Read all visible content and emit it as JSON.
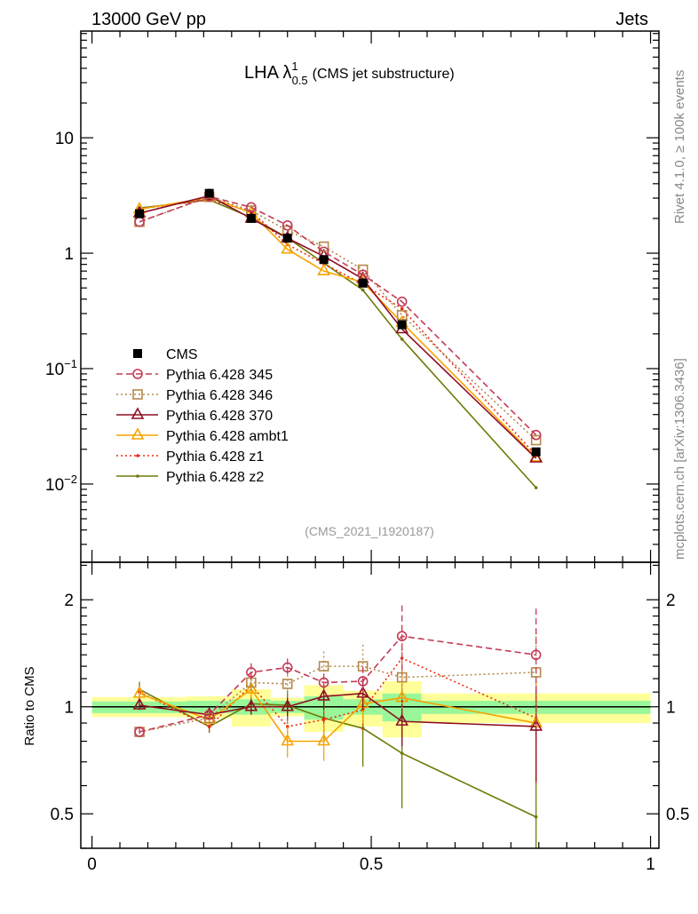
{
  "header": {
    "left": "13000 GeV pp",
    "right": "Jets"
  },
  "side_labels": {
    "rivet": "Rivet 4.1.0, ≥ 100k events",
    "mcplots": "mcplots.cern.ch [arXiv:1306.3436]"
  },
  "chart_data": [
    {
      "type": "line",
      "title": "LHA λ",
      "title_sup": "1",
      "title_sub": "0.5",
      "title_suffix": "(CMS jet substructure)",
      "analysis_label": "(CMS_2021_I1920187)",
      "yscale": "log",
      "ylim": [
        0.0021,
        84
      ],
      "xlim": [
        -0.02,
        1.015
      ],
      "yticks": [
        {
          "v": 10,
          "label": "10"
        },
        {
          "v": 1,
          "label": "1"
        },
        {
          "v": 0.1,
          "label": "10",
          "exp": "−1"
        },
        {
          "v": 0.01,
          "label": "10",
          "exp": "−2"
        }
      ],
      "legend_position": "middle-left",
      "x": [
        0.085,
        0.21,
        0.285,
        0.35,
        0.415,
        0.485,
        0.555,
        0.795
      ],
      "series": [
        {
          "name": "CMS",
          "color": "#000000",
          "marker": "filled-square",
          "line": "none",
          "values": [
            2.2,
            3.3,
            2.0,
            1.35,
            0.88,
            0.55,
            0.24,
            0.019
          ]
        },
        {
          "name": "Pythia 6.428 345",
          "color": "#c33a55",
          "marker": "open-circle",
          "line": "dashed",
          "values": [
            1.87,
            3.1,
            2.5,
            1.74,
            1.03,
            0.65,
            0.38,
            0.0266
          ]
        },
        {
          "name": "Pythia 6.428 346",
          "color": "#b5884a",
          "marker": "open-square",
          "line": "dotted",
          "values": [
            1.87,
            3.07,
            2.34,
            1.57,
            1.14,
            0.72,
            0.29,
            0.024
          ]
        },
        {
          "name": "Pythia 6.428 370",
          "color": "#8e0e22",
          "marker": "open-triangle",
          "line": "solid",
          "values": [
            2.22,
            3.14,
            2.0,
            1.35,
            0.94,
            0.6,
            0.22,
            0.0167
          ]
        },
        {
          "name": "Pythia 6.428 ambt1",
          "color": "#f5a300",
          "marker": "open-triangle",
          "line": "solid",
          "values": [
            2.4,
            3.04,
            2.24,
            1.08,
            0.7,
            0.56,
            0.25,
            0.017
          ]
        },
        {
          "name": "Pythia 6.428 z1",
          "color": "#ee2a10",
          "marker": "dot",
          "line": "dotted",
          "values": [
            2.42,
            2.9,
            2.3,
            1.19,
            0.81,
            0.54,
            0.33,
            0.0177
          ]
        },
        {
          "name": "Pythia 6.428 z2",
          "color": "#6f7a08",
          "marker": "dot",
          "line": "solid",
          "values": [
            2.46,
            2.9,
            2.04,
            1.36,
            0.82,
            0.48,
            0.18,
            0.0093
          ]
        }
      ]
    },
    {
      "type": "line",
      "ylabel": "Ratio to CMS",
      "yscale": "log",
      "ylim": [
        0.4,
        2.55
      ],
      "xlim": [
        -0.02,
        1.015
      ],
      "yticks": [
        {
          "v": 2,
          "label": "2"
        },
        {
          "v": 1,
          "label": "1"
        },
        {
          "v": 0.5,
          "label": "0.5"
        }
      ],
      "xticks": [
        {
          "v": 0,
          "label": "0"
        },
        {
          "v": 0.5,
          "label": "0.5"
        },
        {
          "v": 1,
          "label": "1"
        }
      ],
      "bins": [
        0,
        0.17,
        0.25,
        0.32,
        0.38,
        0.45,
        0.52,
        0.59,
        1.0
      ],
      "band_yellow": [
        [
          0.935,
          1.065
        ],
        [
          0.93,
          1.07
        ],
        [
          0.88,
          1.12
        ],
        [
          0.94,
          1.06
        ],
        [
          0.85,
          1.15
        ],
        [
          0.88,
          1.11
        ],
        [
          0.82,
          1.18
        ],
        [
          0.9,
          1.09
        ]
      ],
      "band_green": [
        [
          0.96,
          1.035
        ],
        [
          0.96,
          1.04
        ],
        [
          0.95,
          1.05
        ],
        [
          0.96,
          1.04
        ],
        [
          0.92,
          1.07
        ],
        [
          0.95,
          1.05
        ],
        [
          0.91,
          1.09
        ],
        [
          0.955,
          1.04
        ]
      ],
      "x": [
        0.085,
        0.21,
        0.285,
        0.35,
        0.415,
        0.485,
        0.555,
        0.795
      ],
      "series": [
        {
          "name": "Pythia 6.428 345",
          "values": [
            0.85,
            0.95,
            1.25,
            1.29,
            1.17,
            1.18,
            1.58,
            1.4
          ],
          "err": [
            0.03,
            0.03,
            0.06,
            0.06,
            0.06,
            0.1,
            0.22,
            0.35
          ]
        },
        {
          "name": "Pythia 6.428 346",
          "values": [
            0.85,
            0.93,
            1.17,
            1.16,
            1.3,
            1.3,
            1.21,
            1.25
          ],
          "err": [
            0.03,
            0.03,
            0.05,
            0.06,
            0.1,
            0.15,
            0.2,
            0.3
          ]
        },
        {
          "name": "Pythia 6.428 370",
          "values": [
            1.01,
            0.95,
            1.0,
            1.0,
            1.07,
            1.09,
            0.91,
            0.88
          ],
          "err": [
            0.03,
            0.03,
            0.05,
            0.06,
            0.08,
            0.1,
            0.15,
            0.3
          ]
        },
        {
          "name": "Pythia 6.428 ambt1",
          "values": [
            1.09,
            0.92,
            1.12,
            0.8,
            0.8,
            1.02,
            1.06,
            0.9
          ],
          "err": [
            0.03,
            0.03,
            0.05,
            0.1,
            0.12,
            0.12,
            0.2,
            0.3
          ]
        },
        {
          "name": "Pythia 6.428 z1",
          "values": [
            1.1,
            0.88,
            1.15,
            0.88,
            0.92,
            0.98,
            1.37,
            0.93
          ],
          "err": [
            0.03,
            0.04,
            0.05,
            0.06,
            0.08,
            0.12,
            0.2,
            0.35
          ]
        },
        {
          "name": "Pythia 6.428 z2",
          "values": [
            1.12,
            0.88,
            1.02,
            1.01,
            0.93,
            0.87,
            0.74,
            0.49
          ],
          "err": [
            0.05,
            0.04,
            0.06,
            0.1,
            0.15,
            0.22,
            0.3,
            0.4
          ]
        }
      ]
    }
  ]
}
